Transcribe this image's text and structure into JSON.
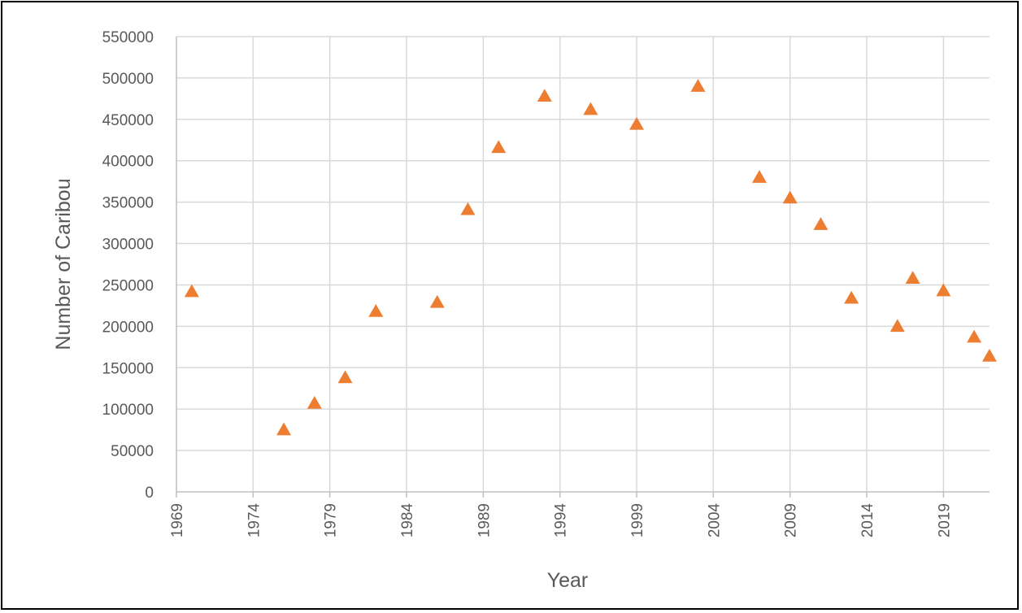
{
  "chart_data": {
    "type": "scatter",
    "title": "",
    "xlabel": "Year",
    "ylabel": "Number of Caribou",
    "xlim": [
      1969,
      2022
    ],
    "ylim": [
      0,
      550000
    ],
    "x_ticks": [
      1969,
      1974,
      1979,
      1984,
      1989,
      1994,
      1999,
      2004,
      2009,
      2014,
      2019
    ],
    "x_tick_labels": [
      "1969",
      "1974",
      "1979",
      "1984",
      "1989",
      "1994",
      "1999",
      "2004",
      "2009",
      "2014",
      "2019"
    ],
    "y_ticks": [
      0,
      50000,
      100000,
      150000,
      200000,
      250000,
      300000,
      350000,
      400000,
      450000,
      500000,
      550000
    ],
    "y_tick_labels": [
      "0",
      "50000",
      "100000",
      "150000",
      "200000",
      "250000",
      "300000",
      "350000",
      "400000",
      "450000",
      "500000",
      "550000"
    ],
    "grid": true,
    "legend": "none",
    "marker": "triangle",
    "color": "#ED7D31",
    "gridline_color": "#D9D9D9",
    "axis_color": "#BFBFBF",
    "points": [
      {
        "x": 1970,
        "y": 242000
      },
      {
        "x": 1976,
        "y": 75000
      },
      {
        "x": 1978,
        "y": 107000
      },
      {
        "x": 1980,
        "y": 138000
      },
      {
        "x": 1982,
        "y": 218000
      },
      {
        "x": 1986,
        "y": 229000
      },
      {
        "x": 1988,
        "y": 341000
      },
      {
        "x": 1990,
        "y": 416000
      },
      {
        "x": 1993,
        "y": 478000
      },
      {
        "x": 1996,
        "y": 462000
      },
      {
        "x": 1999,
        "y": 444000
      },
      {
        "x": 2003,
        "y": 490000
      },
      {
        "x": 2007,
        "y": 380000
      },
      {
        "x": 2009,
        "y": 355000
      },
      {
        "x": 2011,
        "y": 323000
      },
      {
        "x": 2013,
        "y": 234000
      },
      {
        "x": 2016,
        "y": 200000
      },
      {
        "x": 2017,
        "y": 258000
      },
      {
        "x": 2019,
        "y": 243000
      },
      {
        "x": 2021,
        "y": 187000
      },
      {
        "x": 2022,
        "y": 164000
      }
    ]
  }
}
